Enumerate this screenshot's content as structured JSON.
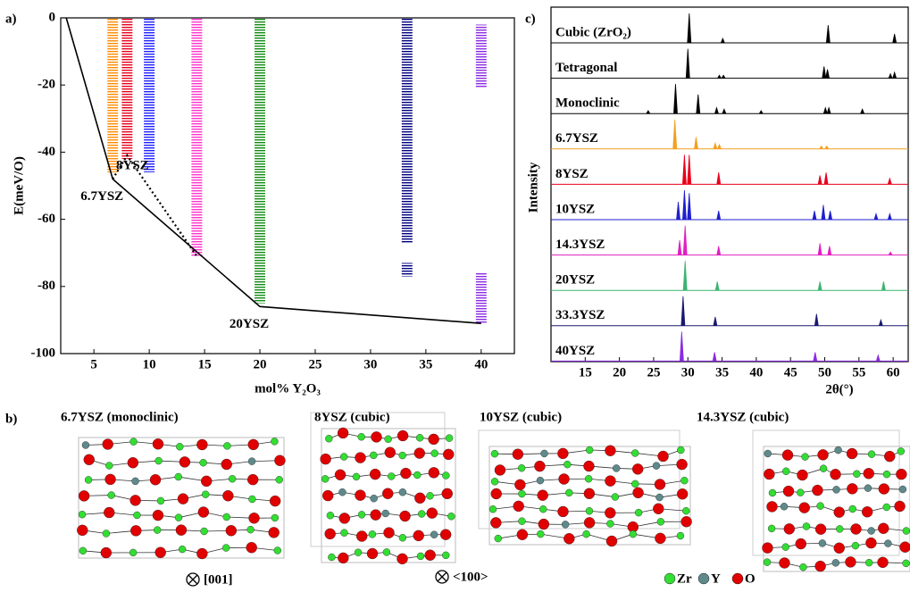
{
  "panel_labels": [
    "a)",
    "b)",
    "c)"
  ],
  "chart_data": [
    {
      "type": "levels",
      "xlabel": "mol% Y₂O₃",
      "ylabel": "E(meV/O)",
      "xlim": [
        2,
        43
      ],
      "ylim": [
        -100,
        0
      ],
      "xticks": [
        5,
        10,
        15,
        20,
        25,
        30,
        35,
        40
      ],
      "yticks": [
        -100,
        -80,
        -60,
        -40,
        -20,
        0
      ],
      "series": [
        {
          "x": 6.7,
          "color": "#ff8c00",
          "ranges": [
            [
              0,
              -46
            ]
          ]
        },
        {
          "x": 8,
          "color": "#e8001c",
          "ranges": [
            [
              0,
              -42
            ]
          ]
        },
        {
          "x": 10,
          "color": "#1f1fff",
          "ranges": [
            [
              0,
              -46
            ]
          ]
        },
        {
          "x": 14.3,
          "color": "#ff33cc",
          "ranges": [
            [
              0,
              -71
            ]
          ]
        },
        {
          "x": 20,
          "color": "#138a13",
          "ranges": [
            [
              0,
              -85
            ]
          ]
        },
        {
          "x": 33.3,
          "color": "#000080",
          "ranges": [
            [
              0,
              -67
            ],
            [
              -73,
              -77
            ]
          ]
        },
        {
          "x": 40,
          "color": "#8b2be2",
          "ranges": [
            [
              -2,
              -21
            ],
            [
              -76,
              -91
            ]
          ]
        }
      ],
      "hull": {
        "x": [
          2.5,
          6.7,
          20,
          40
        ],
        "y": [
          0,
          -48,
          -86,
          -91
        ],
        "labels": [
          null,
          "6.7YSZ",
          "20YSZ",
          null
        ]
      },
      "dotted": {
        "x": [
          6.7,
          8,
          14.3
        ],
        "y": [
          -48,
          -41,
          -71
        ],
        "labels": [
          null,
          "8YSZ",
          null
        ],
        "label_color": "#e8001c"
      }
    },
    {
      "type": "spectra",
      "xlabel": "2θ(°)",
      "ylabel": "Intensity",
      "xlim": [
        10,
        62.2
      ],
      "xticks": [
        15,
        20,
        25,
        30,
        35,
        40,
        45,
        50,
        55,
        60
      ],
      "series": [
        {
          "name": "Cubic (ZrO₂)",
          "color": "#000000",
          "label_color": "#2e9e4e",
          "x": [
            30.2,
            35.1,
            50.5,
            60.2
          ],
          "values": [
            1.0,
            0.15,
            0.6,
            0.3
          ]
        },
        {
          "name": "Tetragonal",
          "color": "#000000",
          "label_color": "#2e9e4e",
          "x": [
            30.0,
            34.6,
            35.2,
            49.9,
            50.4,
            59.6,
            60.2
          ],
          "values": [
            1.0,
            0.1,
            0.1,
            0.4,
            0.3,
            0.15,
            0.2
          ]
        },
        {
          "name": "Monoclinic",
          "color": "#000000",
          "label_color": "#2e9e4e",
          "x": [
            24.2,
            28.2,
            31.5,
            34.2,
            35.3,
            40.7,
            50.1,
            50.6,
            55.5
          ],
          "values": [
            0.1,
            1.0,
            0.65,
            0.2,
            0.15,
            0.1,
            0.2,
            0.2,
            0.15
          ]
        },
        {
          "name": "6.7YSZ",
          "color": "#f0a020",
          "label_color": "#000000",
          "x": [
            28.1,
            31.2,
            34.0,
            34.6,
            49.5,
            50.3
          ],
          "values": [
            1.0,
            0.4,
            0.2,
            0.15,
            0.1,
            0.1
          ]
        },
        {
          "name": "8YSZ",
          "color": "#e8001c",
          "label_color": "#000000",
          "x": [
            29.5,
            30.2,
            34.5,
            49.3,
            50.2,
            59.5
          ],
          "values": [
            1.0,
            1.0,
            0.4,
            0.3,
            0.4,
            0.2
          ]
        },
        {
          "name": "10YSZ",
          "color": "#1f1fcc",
          "label_color": "#000000",
          "x": [
            28.6,
            29.5,
            30.2,
            34.5,
            48.5,
            49.8,
            50.8,
            57.5,
            59.5
          ],
          "values": [
            0.6,
            1.0,
            0.9,
            0.3,
            0.3,
            0.5,
            0.3,
            0.2,
            0.2
          ]
        },
        {
          "name": "14.3YSZ",
          "color": "#e020c0",
          "label_color": "#000000",
          "x": [
            28.8,
            29.6,
            34.5,
            49.3,
            50.7,
            59.6
          ],
          "values": [
            0.5,
            1.0,
            0.3,
            0.4,
            0.3,
            0.1
          ]
        },
        {
          "name": "20YSZ",
          "color": "#3cb371",
          "label_color": "#000000",
          "x": [
            29.6,
            34.3,
            49.3,
            58.6
          ],
          "values": [
            1.0,
            0.3,
            0.3,
            0.3
          ]
        },
        {
          "name": "33.3YSZ",
          "color": "#191970",
          "label_color": "#000000",
          "x": [
            29.3,
            34.0,
            48.8,
            58.2
          ],
          "values": [
            1.0,
            0.3,
            0.4,
            0.2
          ]
        },
        {
          "name": "40YSZ",
          "color": "#8a2be2",
          "label_color": "#000000",
          "x": [
            29.1,
            33.9,
            48.6,
            57.8
          ],
          "values": [
            1.0,
            0.3,
            0.3,
            0.2
          ]
        }
      ]
    }
  ],
  "structures": {
    "labels": [
      "6.7YSZ (monoclinic)",
      "8YSZ (cubic)",
      "10YSZ (cubic)",
      "14.3YSZ (cubic)"
    ],
    "directions": [
      "[001]",
      "<100>"
    ],
    "legend": [
      {
        "name": "Zr",
        "color": "#33dd33"
      },
      {
        "name": "Y",
        "color": "#5f8a8b"
      },
      {
        "name": "O",
        "color": "#e00000"
      }
    ]
  }
}
